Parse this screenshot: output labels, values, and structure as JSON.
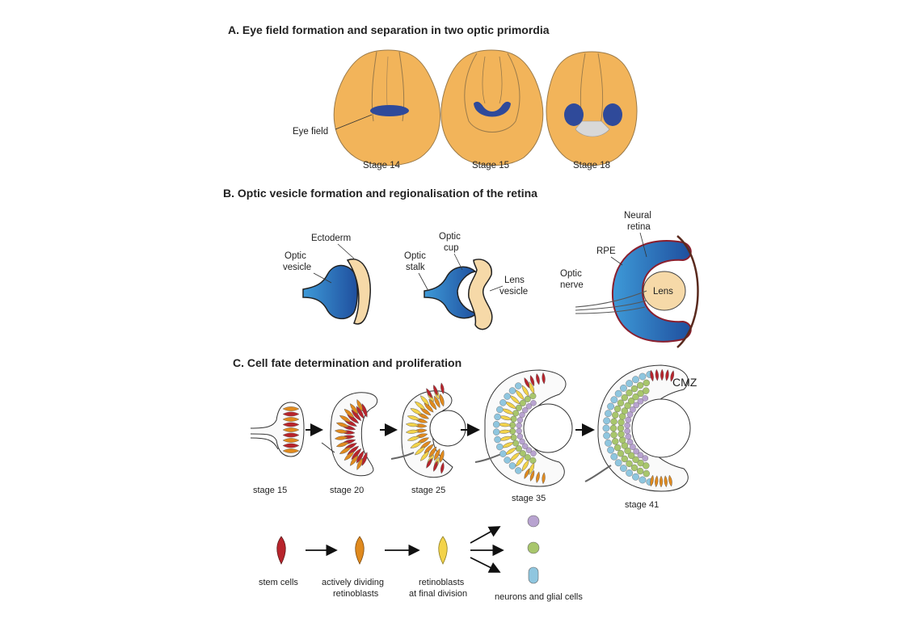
{
  "panel_a": {
    "title": "A.  Eye field formation and separation in two optic primordia",
    "eye_field_label": "Eye field",
    "stages": [
      "Stage 14",
      "Stage 15",
      "Stage 18"
    ]
  },
  "panel_b": {
    "title": "B. Optic vesicle formation and regionalisation of the retina",
    "ectoderm": "Ectoderm",
    "optic_vesicle_1": "Optic",
    "optic_vesicle_2": "vesicle",
    "optic_cup_1": "Optic",
    "optic_cup_2": "cup",
    "optic_stalk_1": "Optic",
    "optic_stalk_2": "stalk",
    "lens_vesicle_1": "Lens",
    "lens_vesicle_2": "vesicle",
    "neural_retina_1": "Neural",
    "neural_retina_2": "retina",
    "rpe": "RPE",
    "optic_nerve_1": "Optic",
    "optic_nerve_2": "nerve",
    "lens": "Lens"
  },
  "panel_c": {
    "title": "C. Cell fate determination and proliferation",
    "cmz": "CMZ",
    "stages": [
      "stage 15",
      "stage 20",
      "stage 25",
      "stage 35",
      "stage 41"
    ],
    "legend": {
      "stem_cells": "stem cells",
      "dividing_1": "actively dividing",
      "dividing_2": "retinoblasts",
      "final_1": "retinoblasts",
      "final_2": "at final division",
      "neurons": "neurons and glial cells"
    }
  },
  "colors": {
    "embryo": "#f2b45a",
    "eye_field": "#2f4a9a",
    "retina_blue": "#2e7cc4",
    "ectoderm": "#f6d9a8",
    "rpe_line": "#8a1f2e",
    "stem": "#b8242c",
    "dividing": "#e08a1e",
    "final": "#f3d34a",
    "neuron_purple": "#b8a3d0",
    "neuron_green": "#a8c66c",
    "neuron_blue": "#8fc6df"
  }
}
